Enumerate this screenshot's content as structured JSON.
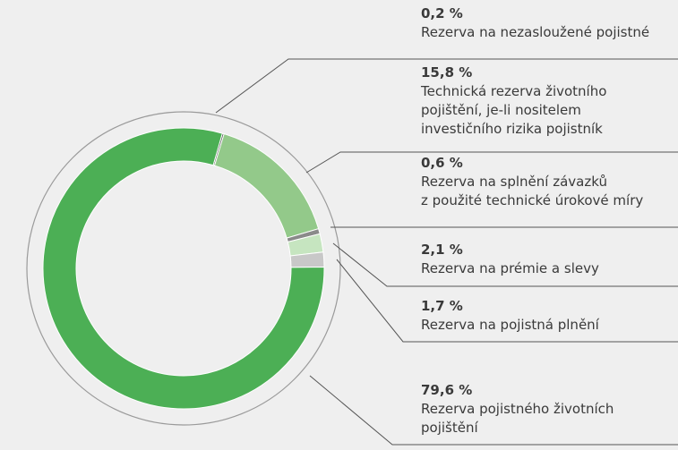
{
  "chart_data": {
    "type": "pie",
    "categories": [
      [
        "Rezerva na nezasloužené pojistné"
      ],
      [
        "Technická rezerva životního",
        "pojištění, je-li nositelem",
        "investičního rizika pojistník"
      ],
      [
        "Rezerva na splnění závazků",
        "z použité technické úrokové míry"
      ],
      [
        "Rezerva na prémie a slevy"
      ],
      [
        "Rezerva na pojistná plnění"
      ],
      [
        "Rezerva pojistného životních",
        "pojištění"
      ]
    ],
    "values": [
      0.2,
      15.8,
      0.6,
      2.1,
      1.7,
      79.6
    ],
    "value_labels": [
      "0,2 %",
      "15,8 %",
      "0,6 %",
      "2,1 %",
      "1,7 %",
      "79,6 %"
    ],
    "colors": [
      "#555555",
      "#93c98a",
      "#8a8a8a",
      "#c6e5c0",
      "#c8c8c8",
      "#4caf55"
    ]
  }
}
